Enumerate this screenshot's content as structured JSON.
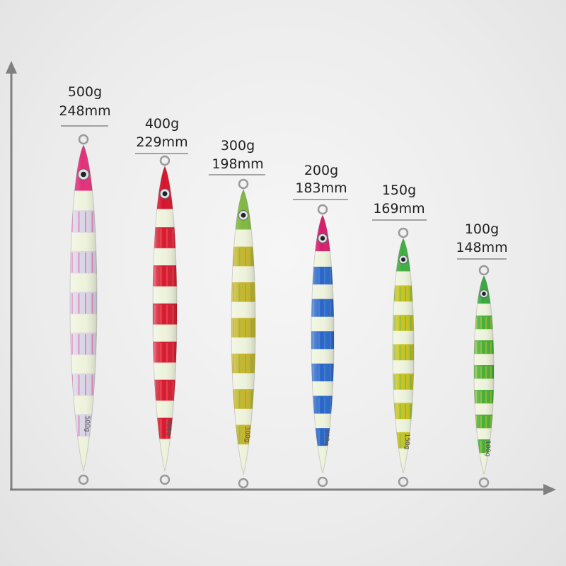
{
  "colors": {
    "axis": "#808080",
    "glow": "#eef3dc",
    "line": "#555555"
  },
  "lures": [
    {
      "weight": "500g",
      "length": "248mm",
      "stamp": "500g",
      "head": "#e0307a",
      "band": "#d9d6e6",
      "accent": "#e8479a"
    },
    {
      "weight": "400g",
      "length": "229mm",
      "stamp": "400g",
      "head": "#d5132b",
      "band": "#d51a2e",
      "accent": "#ff4c5e"
    },
    {
      "weight": "300g",
      "length": "198mm",
      "stamp": "300g",
      "head": "#7fb840",
      "band": "#c8b52a",
      "accent": "#5ab64a"
    },
    {
      "weight": "200g",
      "length": "183mm",
      "stamp": "200g",
      "head": "#d61d6a",
      "band": "#2a66c8",
      "accent": "#3f8ae0"
    },
    {
      "weight": "150g",
      "length": "169mm",
      "stamp": "150g",
      "head": "#3fae3e",
      "band": "#c9c31f",
      "accent": "#52b34a"
    },
    {
      "weight": "100g",
      "length": "148mm",
      "stamp": "100g",
      "head": "#38a83e",
      "band": "#46ae3a",
      "accent": "#c6c520"
    }
  ]
}
